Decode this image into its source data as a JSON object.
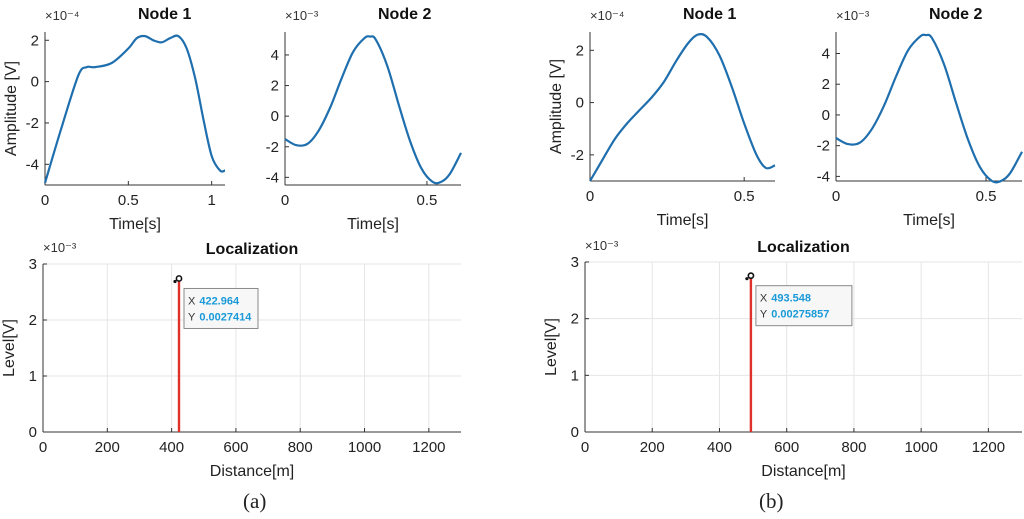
{
  "panel_labels": [
    "(a)",
    "(b)"
  ],
  "colors": {
    "signal": "#1f6fae",
    "stem": "#e0302a",
    "grid": "#e6e6e6",
    "axis": "#333333",
    "tip_value": "#1a9ad9"
  },
  "chart_data": [
    {
      "id": "a-node1",
      "type": "line",
      "title": "Node 1",
      "xlabel": "Time[s]",
      "ylabel": "Amplitude [V]",
      "exponent": "×10⁻⁴",
      "grid": false,
      "xlim": [
        0,
        1.08
      ],
      "ylim": [
        -5,
        2.4
      ],
      "xticks": [
        0,
        0.5,
        1
      ],
      "xtick_labels": [
        "0",
        "0.5",
        "1"
      ],
      "yticks": [
        -4,
        -2,
        0,
        2
      ],
      "ytick_labels": [
        "-4",
        "-2",
        "0",
        "2"
      ],
      "series": [
        {
          "x": [
            0,
            0.1,
            0.2,
            0.25,
            0.3,
            0.4,
            0.5,
            0.55,
            0.6,
            0.65,
            0.7,
            0.75,
            0.8,
            0.85,
            0.9,
            0.95,
            1.0,
            1.05,
            1.08
          ],
          "y": [
            -4.9,
            -2.2,
            0.3,
            0.7,
            0.7,
            0.9,
            1.6,
            2.1,
            2.2,
            2.0,
            1.9,
            2.1,
            2.2,
            1.6,
            0.2,
            -1.8,
            -3.6,
            -4.3,
            -4.3
          ]
        }
      ]
    },
    {
      "id": "a-node2",
      "type": "line",
      "title": "Node 2",
      "xlabel": "Time[s]",
      "ylabel": "",
      "exponent": "×10⁻³",
      "grid": false,
      "xlim": [
        0,
        0.62
      ],
      "ylim": [
        -4.5,
        5.5
      ],
      "xticks": [
        0,
        0.5
      ],
      "xtick_labels": [
        "0",
        "0.5"
      ],
      "yticks": [
        -4,
        -2,
        0,
        2,
        4
      ],
      "ytick_labels": [
        "-4",
        "-2",
        "0",
        "2",
        "4"
      ],
      "series": [
        {
          "x": [
            0,
            0.04,
            0.08,
            0.12,
            0.16,
            0.2,
            0.24,
            0.28,
            0.3,
            0.32,
            0.36,
            0.4,
            0.44,
            0.48,
            0.52,
            0.55,
            0.58,
            0.62
          ],
          "y": [
            -1.5,
            -1.9,
            -1.8,
            -0.9,
            0.6,
            2.5,
            4.2,
            5.1,
            5.2,
            5.0,
            3.3,
            0.8,
            -1.6,
            -3.4,
            -4.3,
            -4.3,
            -3.8,
            -2.4
          ]
        }
      ]
    },
    {
      "id": "a-localization",
      "type": "bar",
      "title": "Localization",
      "xlabel": "Distance[m]",
      "ylabel": "Level[V]",
      "exponent": "×10⁻³",
      "grid": true,
      "xlim": [
        0,
        1300
      ],
      "ylim": [
        0,
        3
      ],
      "xticks": [
        0,
        200,
        400,
        600,
        800,
        1000,
        1200
      ],
      "xtick_labels": [
        "0",
        "200",
        "400",
        "600",
        "800",
        "1000",
        "1200"
      ],
      "yticks": [
        0,
        1,
        2,
        3
      ],
      "ytick_labels": [
        "0",
        "1",
        "2",
        "3"
      ],
      "stem": {
        "x": 422.964,
        "y": 2.7414
      },
      "datatip": {
        "x_label": "X",
        "x_value": "422.964",
        "y_label": "Y",
        "y_value": "0.0027414"
      }
    },
    {
      "id": "b-node1",
      "type": "line",
      "title": "Node 1",
      "xlabel": "Time[s]",
      "ylabel": "Amplitude [V]",
      "exponent": "×10⁻⁴",
      "grid": false,
      "xlim": [
        0,
        0.6
      ],
      "ylim": [
        -3,
        2.7
      ],
      "xticks": [
        0,
        0.5
      ],
      "xtick_labels": [
        "0",
        "0.5"
      ],
      "yticks": [
        -2,
        0,
        2
      ],
      "ytick_labels": [
        "-2",
        "0",
        "2"
      ],
      "series": [
        {
          "x": [
            0,
            0.04,
            0.08,
            0.12,
            0.16,
            0.2,
            0.24,
            0.28,
            0.32,
            0.35,
            0.38,
            0.42,
            0.46,
            0.5,
            0.54,
            0.57,
            0.6
          ],
          "y": [
            -3.0,
            -2.2,
            -1.4,
            -0.8,
            -0.3,
            0.2,
            0.8,
            1.6,
            2.3,
            2.6,
            2.5,
            1.8,
            0.6,
            -0.8,
            -2.0,
            -2.5,
            -2.4
          ]
        }
      ]
    },
    {
      "id": "b-node2",
      "type": "line",
      "title": "Node 2",
      "xlabel": "Time[s]",
      "ylabel": "",
      "exponent": "×10⁻³",
      "grid": false,
      "xlim": [
        0,
        0.62
      ],
      "ylim": [
        -4.3,
        5.4
      ],
      "xticks": [
        0,
        0.5
      ],
      "xtick_labels": [
        "0",
        "0.5"
      ],
      "yticks": [
        -4,
        -2,
        0,
        2,
        4
      ],
      "ytick_labels": [
        "-4",
        "-2",
        "0",
        "2",
        "4"
      ],
      "series": [
        {
          "x": [
            0,
            0.04,
            0.08,
            0.12,
            0.16,
            0.2,
            0.24,
            0.28,
            0.3,
            0.32,
            0.36,
            0.4,
            0.44,
            0.48,
            0.52,
            0.55,
            0.58,
            0.62
          ],
          "y": [
            -1.5,
            -1.9,
            -1.8,
            -0.9,
            0.6,
            2.5,
            4.2,
            5.1,
            5.2,
            5.0,
            3.3,
            0.8,
            -1.6,
            -3.4,
            -4.3,
            -4.3,
            -3.8,
            -2.4
          ]
        }
      ]
    },
    {
      "id": "b-localization",
      "type": "bar",
      "title": "Localization",
      "xlabel": "Distance[m]",
      "ylabel": "Level[V]",
      "exponent": "×10⁻³",
      "grid": true,
      "xlim": [
        0,
        1300
      ],
      "ylim": [
        0,
        3
      ],
      "xticks": [
        0,
        200,
        400,
        600,
        800,
        1000,
        1200
      ],
      "xtick_labels": [
        "0",
        "200",
        "400",
        "600",
        "800",
        "1000",
        "1200"
      ],
      "yticks": [
        0,
        1,
        2,
        3
      ],
      "ytick_labels": [
        "0",
        "1",
        "2",
        "3"
      ],
      "stem": {
        "x": 493.548,
        "y": 2.75857
      },
      "datatip": {
        "x_label": "X",
        "x_value": "493.548",
        "y_label": "Y",
        "y_value": "0.00275857"
      }
    }
  ]
}
